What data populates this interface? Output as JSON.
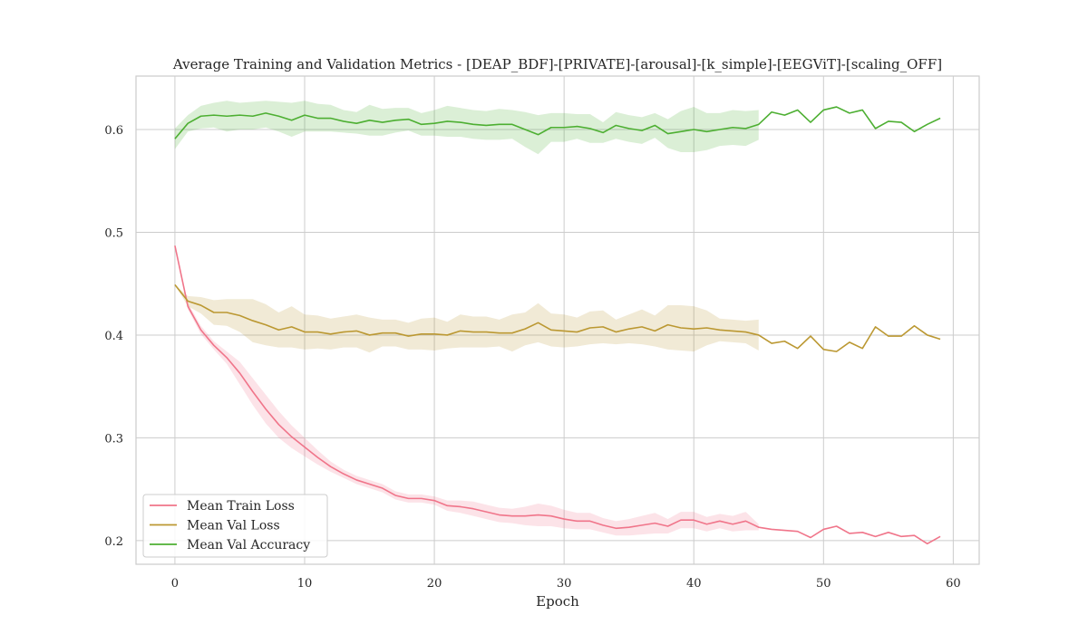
{
  "chart_data": {
    "type": "line",
    "title": "Average Training and Validation Metrics - [DEAP_BDF]-[PRIVATE]-[arousal]-[k_simple]-[EEGViT]-[scaling_OFF]",
    "xlabel": "Epoch",
    "ylabel": "",
    "xlim": [
      -3,
      62
    ],
    "ylim": [
      0.177,
      0.652
    ],
    "xticks": [
      0,
      10,
      20,
      30,
      40,
      50,
      60
    ],
    "yticks": [
      0.2,
      0.3,
      0.4,
      0.5,
      0.6
    ],
    "xtick_labels": [
      "0",
      "10",
      "20",
      "30",
      "40",
      "50",
      "60"
    ],
    "ytick_labels": [
      "0.2",
      "0.3",
      "0.4",
      "0.5",
      "0.6"
    ],
    "grid": true,
    "legend_position": "lower-left",
    "x": [
      0,
      1,
      2,
      3,
      4,
      5,
      6,
      7,
      8,
      9,
      10,
      11,
      12,
      13,
      14,
      15,
      16,
      17,
      18,
      19,
      20,
      21,
      22,
      23,
      24,
      25,
      26,
      27,
      28,
      29,
      30,
      31,
      32,
      33,
      34,
      35,
      36,
      37,
      38,
      39,
      40,
      41,
      42,
      43,
      44,
      45,
      46,
      47,
      48,
      49,
      50,
      51,
      52,
      53,
      54,
      55,
      56,
      57,
      58,
      59
    ],
    "band_end_index": 45,
    "series": [
      {
        "name": "Mean Train Loss",
        "color": "#f0758a",
        "values": [
          0.487,
          0.428,
          0.405,
          0.39,
          0.378,
          0.363,
          0.345,
          0.328,
          0.313,
          0.301,
          0.291,
          0.281,
          0.272,
          0.265,
          0.259,
          0.255,
          0.251,
          0.244,
          0.241,
          0.241,
          0.239,
          0.234,
          0.233,
          0.231,
          0.228,
          0.225,
          0.224,
          0.224,
          0.225,
          0.224,
          0.221,
          0.219,
          0.219,
          0.215,
          0.212,
          0.213,
          0.215,
          0.217,
          0.214,
          0.22,
          0.22,
          0.216,
          0.219,
          0.216,
          0.219,
          0.213,
          0.211,
          0.21,
          0.209,
          0.203,
          0.211,
          0.214,
          0.207,
          0.208,
          0.204,
          0.208,
          0.204,
          0.205,
          0.197,
          0.204
        ],
        "band_lower": [
          0.487,
          0.425,
          0.401,
          0.386,
          0.372,
          0.352,
          0.332,
          0.314,
          0.3,
          0.29,
          0.282,
          0.274,
          0.267,
          0.261,
          0.255,
          0.251,
          0.247,
          0.24,
          0.237,
          0.237,
          0.235,
          0.229,
          0.227,
          0.224,
          0.221,
          0.218,
          0.217,
          0.215,
          0.214,
          0.214,
          0.212,
          0.211,
          0.211,
          0.208,
          0.205,
          0.205,
          0.206,
          0.207,
          0.207,
          0.212,
          0.212,
          0.209,
          0.212,
          0.209,
          0.21,
          0.21
        ],
        "band_upper": [
          0.487,
          0.431,
          0.409,
          0.394,
          0.384,
          0.374,
          0.358,
          0.342,
          0.326,
          0.312,
          0.3,
          0.288,
          0.277,
          0.269,
          0.263,
          0.259,
          0.255,
          0.248,
          0.245,
          0.245,
          0.243,
          0.239,
          0.239,
          0.238,
          0.235,
          0.232,
          0.231,
          0.233,
          0.236,
          0.234,
          0.23,
          0.227,
          0.227,
          0.222,
          0.219,
          0.221,
          0.224,
          0.227,
          0.221,
          0.228,
          0.228,
          0.223,
          0.226,
          0.224,
          0.228,
          0.216
        ]
      },
      {
        "name": "Mean Val Loss",
        "color": "#bb9832",
        "values": [
          0.449,
          0.433,
          0.429,
          0.422,
          0.422,
          0.419,
          0.414,
          0.41,
          0.405,
          0.408,
          0.403,
          0.403,
          0.401,
          0.403,
          0.404,
          0.4,
          0.402,
          0.402,
          0.399,
          0.401,
          0.401,
          0.4,
          0.404,
          0.403,
          0.403,
          0.402,
          0.402,
          0.406,
          0.412,
          0.405,
          0.404,
          0.403,
          0.407,
          0.408,
          0.403,
          0.406,
          0.408,
          0.404,
          0.41,
          0.407,
          0.406,
          0.407,
          0.405,
          0.404,
          0.403,
          0.4,
          0.392,
          0.394,
          0.387,
          0.399,
          0.386,
          0.384,
          0.393,
          0.387,
          0.408,
          0.399,
          0.399,
          0.409,
          0.4,
          0.396
        ],
        "band_lower": [
          0.449,
          0.428,
          0.421,
          0.41,
          0.409,
          0.403,
          0.393,
          0.39,
          0.388,
          0.388,
          0.386,
          0.387,
          0.386,
          0.388,
          0.388,
          0.383,
          0.389,
          0.389,
          0.386,
          0.386,
          0.385,
          0.387,
          0.388,
          0.388,
          0.388,
          0.389,
          0.384,
          0.39,
          0.393,
          0.389,
          0.388,
          0.389,
          0.391,
          0.392,
          0.391,
          0.392,
          0.391,
          0.389,
          0.386,
          0.385,
          0.384,
          0.39,
          0.394,
          0.393,
          0.392,
          0.385
        ],
        "band_upper": [
          0.449,
          0.438,
          0.437,
          0.434,
          0.435,
          0.435,
          0.435,
          0.43,
          0.422,
          0.428,
          0.42,
          0.419,
          0.416,
          0.418,
          0.42,
          0.417,
          0.415,
          0.415,
          0.412,
          0.416,
          0.417,
          0.413,
          0.42,
          0.418,
          0.418,
          0.415,
          0.42,
          0.422,
          0.431,
          0.421,
          0.42,
          0.417,
          0.423,
          0.424,
          0.415,
          0.42,
          0.425,
          0.419,
          0.429,
          0.429,
          0.428,
          0.424,
          0.416,
          0.415,
          0.414,
          0.415
        ]
      },
      {
        "name": "Mean Val Accuracy",
        "color": "#4daf32",
        "values": [
          0.591,
          0.606,
          0.613,
          0.614,
          0.613,
          0.614,
          0.613,
          0.616,
          0.613,
          0.609,
          0.614,
          0.611,
          0.611,
          0.608,
          0.606,
          0.609,
          0.607,
          0.609,
          0.61,
          0.605,
          0.606,
          0.608,
          0.607,
          0.605,
          0.604,
          0.605,
          0.605,
          0.6,
          0.595,
          0.602,
          0.602,
          0.603,
          0.601,
          0.597,
          0.604,
          0.601,
          0.599,
          0.604,
          0.596,
          0.598,
          0.6,
          0.598,
          0.6,
          0.602,
          0.601,
          0.605,
          0.617,
          0.614,
          0.619,
          0.607,
          0.619,
          0.622,
          0.616,
          0.619,
          0.601,
          0.608,
          0.607,
          0.598,
          0.605,
          0.611
        ],
        "band_lower": [
          0.581,
          0.598,
          0.601,
          0.602,
          0.598,
          0.6,
          0.6,
          0.602,
          0.598,
          0.593,
          0.598,
          0.598,
          0.598,
          0.597,
          0.596,
          0.594,
          0.594,
          0.597,
          0.599,
          0.594,
          0.594,
          0.593,
          0.593,
          0.591,
          0.59,
          0.59,
          0.591,
          0.583,
          0.576,
          0.588,
          0.588,
          0.591,
          0.587,
          0.587,
          0.591,
          0.588,
          0.586,
          0.592,
          0.582,
          0.578,
          0.578,
          0.58,
          0.584,
          0.585,
          0.584,
          0.59
        ],
        "band_upper": [
          0.601,
          0.614,
          0.623,
          0.626,
          0.628,
          0.626,
          0.627,
          0.628,
          0.627,
          0.626,
          0.628,
          0.625,
          0.624,
          0.619,
          0.617,
          0.624,
          0.62,
          0.621,
          0.621,
          0.616,
          0.619,
          0.623,
          0.621,
          0.619,
          0.618,
          0.62,
          0.619,
          0.617,
          0.614,
          0.616,
          0.616,
          0.615,
          0.615,
          0.607,
          0.617,
          0.614,
          0.612,
          0.616,
          0.61,
          0.618,
          0.622,
          0.616,
          0.616,
          0.619,
          0.618,
          0.619
        ]
      }
    ]
  }
}
